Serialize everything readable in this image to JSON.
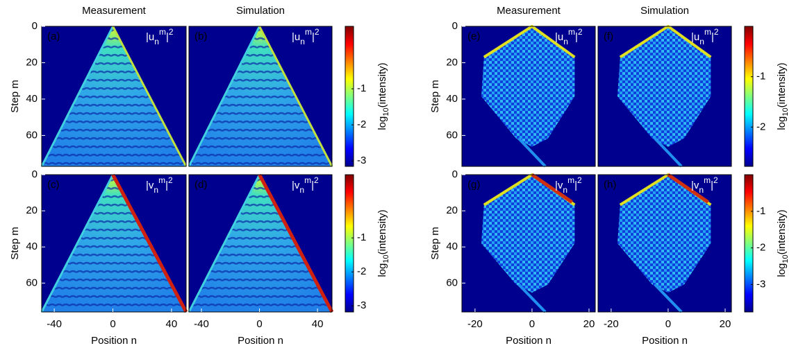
{
  "chart_data": [
    {
      "type": "heatmap",
      "title": "Measurement",
      "panel_label": "(a)",
      "quantity": {
        "base": "|u",
        "sup": "m",
        "sub": "n",
        "close": "|",
        "power": "2"
      },
      "xlim": [
        -48.6,
        50
      ],
      "ylim": [
        0,
        77
      ],
      "ylabel": "Step m",
      "yticks": [
        0,
        20,
        40,
        60
      ]
    },
    {
      "type": "heatmap",
      "title": "Simulation",
      "panel_label": "(b)",
      "quantity": {
        "base": "|u",
        "sup": "m",
        "sub": "n",
        "close": "|",
        "power": "2"
      },
      "xlim": [
        -48.6,
        50
      ],
      "ylim": [
        0,
        77
      ],
      "colorbar": {
        "label": {
          "base": "log",
          "sub": "10",
          "rest": "(intensity)"
        },
        "lim": [
          -3.15,
          0.73
        ],
        "ticks": [
          -1,
          -2,
          -3
        ]
      }
    },
    {
      "type": "heatmap",
      "panel_label": "(c)",
      "quantity": {
        "base": "|v",
        "sup": "m",
        "sub": "n",
        "close": "|",
        "power": "2"
      },
      "xlim": [
        -48.6,
        50
      ],
      "ylim": [
        0,
        76
      ],
      "ylabel": "Step m",
      "yticks": [
        0,
        20,
        40,
        60
      ],
      "xlabel": "Position n",
      "xticks": [
        -40,
        0,
        40
      ]
    },
    {
      "type": "heatmap",
      "panel_label": "(d)",
      "quantity": {
        "base": "|v",
        "sup": "m",
        "sub": "n",
        "close": "|",
        "power": "2"
      },
      "xlim": [
        -48.6,
        50
      ],
      "ylim": [
        0,
        76
      ],
      "xlabel": "Position n",
      "xticks": [
        -40,
        0,
        40
      ],
      "colorbar": {
        "label": {
          "base": "log",
          "sub": "10",
          "rest": "(intensity)"
        },
        "lim": [
          -3.18,
          0.86
        ],
        "ticks": [
          -1,
          -2,
          -3
        ]
      }
    },
    {
      "type": "heatmap",
      "title": "Measurement",
      "panel_label": "(e)",
      "quantity": {
        "base": "|u",
        "sup": "m",
        "sub": "n",
        "close": "|",
        "power": "2"
      },
      "xlim": [
        -24.6,
        22.2
      ],
      "ylim": [
        0,
        77
      ],
      "ylabel": "Step m",
      "yticks": [
        0,
        20,
        40,
        60
      ]
    },
    {
      "type": "heatmap",
      "title": "Simulation",
      "panel_label": "(f)",
      "quantity": {
        "base": "|u",
        "sup": "m",
        "sub": "n",
        "close": "|",
        "power": "2"
      },
      "xlim": [
        -24.6,
        22.2
      ],
      "ylim": [
        0,
        77
      ],
      "colorbar": {
        "label": {
          "base": "log",
          "sub": "10",
          "rest": "(intensity)"
        },
        "lim": [
          -2.78,
          0
        ],
        "ticks": [
          -1,
          -2
        ]
      }
    },
    {
      "type": "heatmap",
      "panel_label": "(g)",
      "quantity": {
        "base": "|v",
        "sup": "m",
        "sub": "n",
        "close": "|",
        "power": "2"
      },
      "xlim": [
        -24.6,
        22.2
      ],
      "ylim": [
        0,
        76
      ],
      "ylabel": "Step m",
      "yticks": [
        0,
        20,
        40,
        60
      ],
      "xlabel": "Position n",
      "xticks": [
        -20,
        0,
        20
      ]
    },
    {
      "type": "heatmap",
      "panel_label": "(h)",
      "quantity": {
        "base": "|v",
        "sup": "m",
        "sub": "n",
        "close": "|",
        "power": "2"
      },
      "xlim": [
        -24.6,
        22.2
      ],
      "ylim": [
        0,
        76
      ],
      "xlabel": "Position n",
      "xticks": [
        -20,
        0,
        20
      ],
      "colorbar": {
        "label": {
          "base": "log",
          "sub": "10",
          "rest": "(intensity)"
        },
        "lim": [
          -3.75,
          0
        ],
        "ticks": [
          -1,
          -2,
          -3
        ]
      }
    }
  ]
}
